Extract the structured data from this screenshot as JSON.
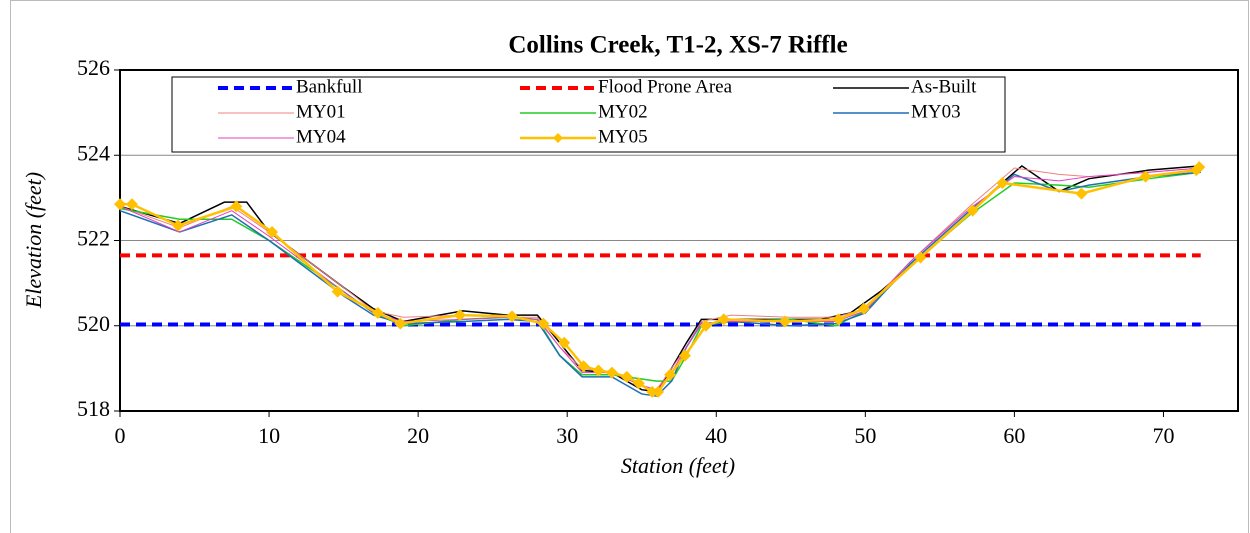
{
  "chart_data": {
    "type": "line",
    "title": "Collins Creek, T1-2, XS-7 Riffle",
    "x_label": "Station (feet)",
    "y_label": "Elevation (feet)",
    "xlim": [
      0,
      75
    ],
    "xticks": [
      0,
      10,
      20,
      30,
      40,
      50,
      60,
      70
    ],
    "ylim": [
      518,
      526
    ],
    "yticks": [
      518,
      520,
      522,
      524,
      526
    ],
    "grid": true,
    "series": [
      {
        "name": "Bankfull",
        "color": "#0000ff",
        "dash": true,
        "width": 4,
        "x": [
          0,
          72.5
        ],
        "values": [
          520.03,
          520.03
        ]
      },
      {
        "name": "Flood Prone Area",
        "color": "#ff0000",
        "dash": true,
        "width": 4,
        "x": [
          0,
          72.5
        ],
        "values": [
          521.65,
          521.65
        ]
      },
      {
        "name": "As-Built",
        "color": "#000000",
        "width": 1.5,
        "x": [
          0,
          2,
          4,
          7,
          8.5,
          10,
          15,
          17,
          19,
          23,
          26,
          28,
          29.5,
          31,
          33,
          35,
          36,
          37,
          38,
          39,
          44,
          47,
          49,
          51,
          55,
          59,
          60.5,
          63,
          65,
          69,
          72.5
        ],
        "values": [
          522.8,
          522.6,
          522.4,
          522.9,
          522.9,
          522.2,
          520.9,
          520.4,
          520.1,
          520.35,
          520.25,
          520.25,
          519.6,
          518.95,
          518.9,
          518.5,
          518.45,
          519.0,
          519.6,
          520.15,
          520.15,
          520.15,
          520.3,
          520.8,
          522.0,
          523.3,
          523.75,
          523.15,
          523.45,
          523.65,
          523.75
        ]
      },
      {
        "name": "MY01",
        "color": "#f08080",
        "width": 1,
        "x": [
          0,
          4,
          7.5,
          10,
          15,
          17,
          19,
          23,
          26,
          28,
          29.5,
          31,
          33,
          35,
          36,
          37,
          38,
          39,
          41,
          45,
          48,
          50,
          53,
          57,
          60,
          63,
          65,
          69,
          72.5
        ],
        "values": [
          522.8,
          522.3,
          522.8,
          522.2,
          520.9,
          520.35,
          520.2,
          520.25,
          520.2,
          520.2,
          519.5,
          519.0,
          518.9,
          518.6,
          518.5,
          519.0,
          519.5,
          520.1,
          520.25,
          520.2,
          520.2,
          520.4,
          521.5,
          522.8,
          523.7,
          523.55,
          523.5,
          523.6,
          523.7
        ]
      },
      {
        "name": "MY02",
        "color": "#22cc22",
        "width": 1.5,
        "x": [
          0,
          4,
          7.5,
          10,
          15,
          17,
          19,
          23,
          26,
          28,
          29.5,
          31,
          33,
          35,
          36,
          37,
          38,
          39,
          41,
          45,
          48,
          50,
          53,
          57,
          60,
          63,
          65,
          69,
          72.5
        ],
        "values": [
          522.75,
          522.5,
          522.5,
          522.0,
          520.8,
          520.3,
          520.0,
          520.15,
          520.2,
          520.15,
          519.3,
          518.85,
          518.85,
          518.75,
          518.7,
          518.7,
          519.3,
          520.0,
          520.1,
          520.15,
          520.0,
          520.35,
          521.4,
          522.6,
          523.35,
          523.3,
          523.25,
          523.45,
          523.6
        ]
      },
      {
        "name": "MY03",
        "color": "#1f6fb5",
        "width": 1.5,
        "x": [
          0,
          4,
          7.5,
          10,
          15,
          17,
          19,
          23,
          26,
          28,
          29.5,
          31,
          33,
          35,
          36,
          37,
          38,
          39,
          41,
          45,
          48,
          50,
          53,
          57,
          60,
          63,
          65,
          69,
          72.5
        ],
        "values": [
          522.7,
          522.2,
          522.6,
          522.0,
          520.7,
          520.25,
          520.05,
          520.1,
          520.15,
          520.1,
          519.3,
          518.8,
          518.8,
          518.4,
          518.35,
          518.7,
          519.5,
          520.05,
          520.1,
          520.0,
          520.05,
          520.3,
          521.45,
          522.7,
          523.55,
          523.15,
          523.3,
          523.5,
          523.6
        ]
      },
      {
        "name": "MY04",
        "color": "#e040c0",
        "width": 1,
        "x": [
          0,
          4,
          7.5,
          10,
          15,
          17,
          19,
          23,
          26,
          28,
          29.5,
          31,
          33,
          35,
          36,
          37,
          38,
          39,
          41,
          45,
          48,
          50,
          53,
          57,
          60,
          63,
          65,
          69,
          72.5
        ],
        "values": [
          522.8,
          522.2,
          522.7,
          522.1,
          520.8,
          520.3,
          520.1,
          520.15,
          520.2,
          520.15,
          519.5,
          518.9,
          518.9,
          518.6,
          518.5,
          518.9,
          519.5,
          520.05,
          520.1,
          520.1,
          520.1,
          520.35,
          521.5,
          522.75,
          523.5,
          523.4,
          523.5,
          523.6,
          523.7
        ]
      },
      {
        "name": "MY05",
        "color": "#ffc000",
        "width": 2.5,
        "marker": "diamond",
        "x": [
          0,
          0.8,
          3.9,
          7.8,
          10.2,
          14.6,
          17.3,
          18.8,
          22.8,
          26.3,
          28.4,
          29.8,
          31.1,
          32.1,
          33.0,
          34.0,
          34.8,
          35.7,
          36.1,
          36.9,
          37.9,
          39.3,
          40.5,
          44.6,
          48.2,
          49.9,
          53.7,
          57.2,
          59.2,
          64.5,
          68.8,
          72.2,
          72.4
        ],
        "values": [
          522.85,
          522.85,
          522.35,
          522.8,
          522.2,
          520.8,
          520.3,
          520.05,
          520.25,
          520.22,
          520.05,
          519.6,
          519.05,
          518.95,
          518.9,
          518.8,
          518.65,
          518.45,
          518.45,
          518.85,
          519.3,
          520.0,
          520.15,
          520.1,
          520.15,
          520.4,
          521.6,
          522.7,
          523.35,
          523.1,
          523.5,
          523.65,
          523.72
        ]
      }
    ]
  }
}
